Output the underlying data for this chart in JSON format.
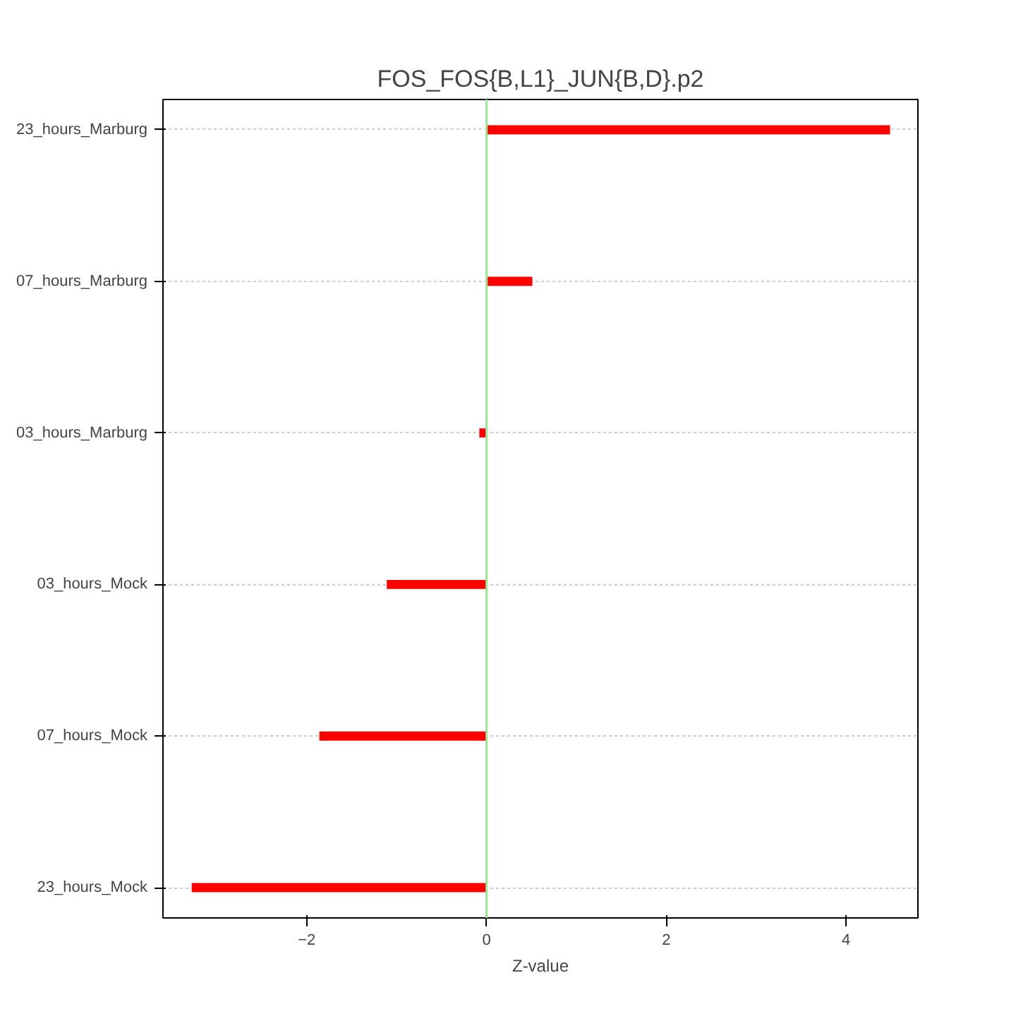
{
  "chart_data": {
    "type": "bar",
    "orientation": "horizontal",
    "title": "FOS_FOS{B,L1}_JUN{B,D}.p2",
    "xlabel": "Z-value",
    "categories": [
      "23_hours_Marburg",
      "07_hours_Marburg",
      "03_hours_Marburg",
      "03_hours_Mock",
      "07_hours_Mock",
      "23_hours_Mock"
    ],
    "values": [
      4.49,
      0.51,
      -0.08,
      -1.11,
      -1.86,
      -3.28
    ],
    "color": "#ff0000",
    "xlim": [
      -3.6,
      4.8
    ],
    "xticks": [
      -2,
      0,
      2,
      4
    ],
    "grid": "y",
    "ref_lines": [
      {
        "axis": "x",
        "value": 0,
        "color": "#90ee90"
      }
    ]
  }
}
